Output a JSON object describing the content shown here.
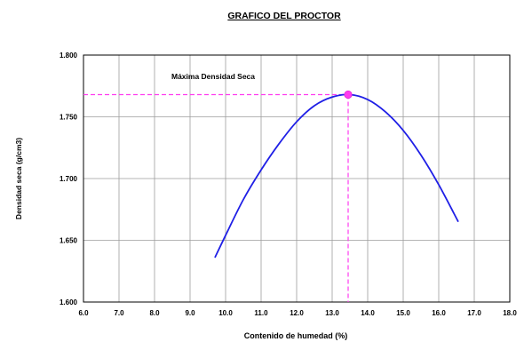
{
  "chart_data": {
    "type": "line",
    "title": "GRAFICO DEL PROCTOR",
    "xlabel": "Contenido de humedad (%)",
    "ylabel": "Densidad seca (g/cm3)",
    "xlim": [
      6.0,
      18.0
    ],
    "ylim": [
      1.6,
      1.8
    ],
    "x_ticks": [
      "6.0",
      "7.0",
      "8.0",
      "9.0",
      "10.0",
      "11.0",
      "12.0",
      "13.0",
      "14.0",
      "15.0",
      "16.0",
      "17.0",
      "18.0"
    ],
    "y_ticks": [
      "1.600",
      "1.650",
      "1.700",
      "1.750",
      "1.800"
    ],
    "grid": true,
    "series": [
      {
        "color": "#1f1fe6",
        "x": [
          9.7,
          10.0,
          10.5,
          11.0,
          11.5,
          12.0,
          12.5,
          13.0,
          13.5,
          14.0,
          14.5,
          15.0,
          15.5,
          16.0,
          16.55
        ],
        "y": [
          1.636,
          1.654,
          1.683,
          1.707,
          1.728,
          1.746,
          1.759,
          1.766,
          1.768,
          1.764,
          1.754,
          1.739,
          1.719,
          1.695,
          1.665
        ]
      }
    ],
    "max_point": {
      "x": 13.45,
      "y": 1.768,
      "color": "#ff3bf0",
      "label": "Máxima Densidad Seca"
    }
  }
}
